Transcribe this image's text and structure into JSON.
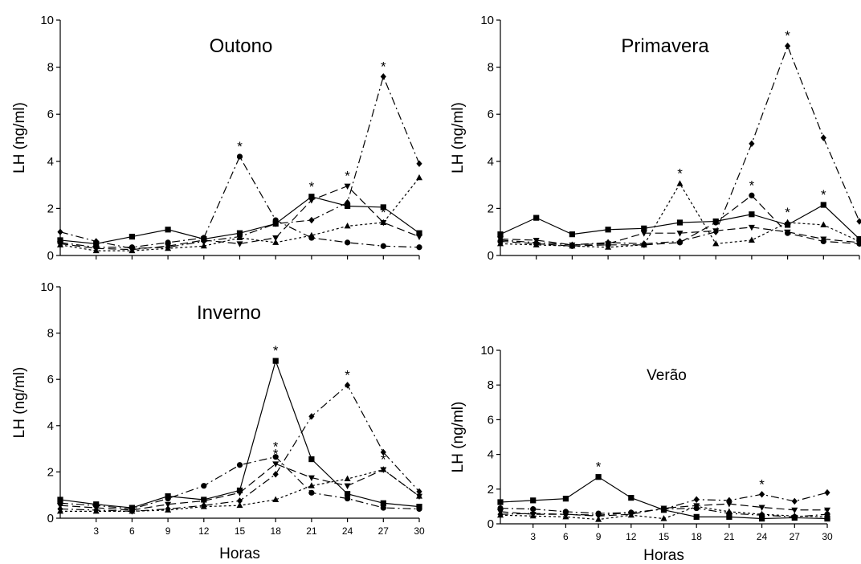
{
  "chart_data": [
    {
      "type": "line",
      "title": "Outono",
      "ylabel": "LH (ng/ml)",
      "xlabel": "",
      "ylim": [
        0,
        10
      ],
      "yticks": [
        "0",
        "2",
        "4",
        "6",
        "8",
        "10"
      ],
      "xticks": [],
      "x": [
        0,
        3,
        6,
        9,
        12,
        15,
        18,
        21,
        24,
        27,
        30
      ],
      "series": [
        {
          "marker": "square",
          "dash": "solid",
          "values": [
            0.65,
            0.5,
            0.8,
            1.1,
            0.7,
            0.95,
            1.35,
            2.5,
            2.1,
            2.05,
            0.95
          ]
        },
        {
          "marker": "circle",
          "dash": "dashdot",
          "values": [
            0.55,
            0.35,
            0.35,
            0.55,
            0.75,
            4.2,
            1.5,
            0.75,
            0.55,
            0.4,
            0.35
          ]
        },
        {
          "marker": "triangle",
          "dash": "dotted",
          "values": [
            0.45,
            0.2,
            0.2,
            0.3,
            0.4,
            0.75,
            0.55,
            0.85,
            1.25,
            1.4,
            3.3
          ]
        },
        {
          "marker": "down-triangle",
          "dash": "dashed",
          "values": [
            0.5,
            0.3,
            0.25,
            0.4,
            0.65,
            0.5,
            0.75,
            2.35,
            2.95,
            1.4,
            0.8
          ]
        },
        {
          "marker": "diamond",
          "dash": "dashdot",
          "values": [
            1.0,
            0.6,
            0.3,
            0.35,
            0.6,
            0.8,
            1.35,
            1.5,
            2.25,
            7.6,
            3.9
          ]
        }
      ],
      "annotations": [
        {
          "text": "*",
          "x": 15,
          "y": 4.2
        },
        {
          "text": "*",
          "x": 21,
          "y": 2.5
        },
        {
          "text": "*",
          "x": 24,
          "y": 2.95
        },
        {
          "text": "*",
          "x": 27,
          "y": 7.6
        },
        {
          "text": "*",
          "x": 27,
          "y": 1.4
        }
      ]
    },
    {
      "type": "line",
      "title": "Primavera",
      "ylabel": "LH (ng/ml)",
      "xlabel": "",
      "ylim": [
        0,
        10
      ],
      "yticks": [
        "0",
        "2",
        "4",
        "6",
        "8",
        "10"
      ],
      "xticks": [],
      "x": [
        0,
        3,
        6,
        9,
        12,
        15,
        18,
        21,
        24,
        27,
        30
      ],
      "series": [
        {
          "marker": "square",
          "dash": "solid",
          "values": [
            0.9,
            1.6,
            0.9,
            1.1,
            1.15,
            1.4,
            1.45,
            1.75,
            1.3,
            2.15,
            0.7
          ]
        },
        {
          "marker": "circle",
          "dash": "dashed",
          "values": [
            0.6,
            0.5,
            0.4,
            0.45,
            0.45,
            0.55,
            1.4,
            2.55,
            0.95,
            0.6,
            0.5
          ]
        },
        {
          "marker": "triangle",
          "dash": "dotted",
          "values": [
            0.5,
            0.45,
            0.4,
            0.35,
            0.45,
            3.05,
            0.5,
            0.65,
            1.4,
            1.3,
            0.6
          ]
        },
        {
          "marker": "down-triangle",
          "dash": "dashed",
          "values": [
            0.7,
            0.65,
            0.45,
            0.5,
            0.95,
            0.95,
            1.05,
            1.2,
            1.0,
            0.7,
            0.55
          ]
        },
        {
          "marker": "diamond",
          "dash": "dashdot",
          "values": [
            0.65,
            0.55,
            0.45,
            0.55,
            0.5,
            0.6,
            1.0,
            4.75,
            8.9,
            5.0,
            1.45
          ]
        }
      ],
      "annotations": [
        {
          "text": "*",
          "x": 15,
          "y": 3.05
        },
        {
          "text": "*",
          "x": 21,
          "y": 2.55
        },
        {
          "text": "*",
          "x": 24,
          "y": 8.9
        },
        {
          "text": "*",
          "x": 24,
          "y": 1.4
        },
        {
          "text": "*",
          "x": 27,
          "y": 2.15
        }
      ]
    },
    {
      "type": "line",
      "title": "Inverno",
      "ylabel": "LH (ng/ml)",
      "xlabel": "Horas",
      "ylim": [
        0,
        10
      ],
      "yticks": [
        "0",
        "2",
        "4",
        "6",
        "8",
        "10"
      ],
      "xticks": [
        "3",
        "6",
        "9",
        "12",
        "15",
        "18",
        "21",
        "24",
        "27",
        "30"
      ],
      "x": [
        0,
        3,
        6,
        9,
        12,
        15,
        18,
        21,
        24,
        27,
        30
      ],
      "series": [
        {
          "marker": "square",
          "dash": "solid",
          "values": [
            0.8,
            0.6,
            0.45,
            0.95,
            0.8,
            1.2,
            6.8,
            2.55,
            1.05,
            0.65,
            0.5
          ]
        },
        {
          "marker": "circle",
          "dash": "dashdot",
          "values": [
            0.65,
            0.55,
            0.4,
            0.85,
            1.4,
            2.3,
            2.65,
            1.1,
            0.85,
            0.45,
            0.4
          ]
        },
        {
          "marker": "triangle",
          "dash": "dotted",
          "values": [
            0.3,
            0.3,
            0.3,
            0.35,
            0.5,
            0.55,
            0.8,
            1.4,
            1.7,
            2.1,
            0.95
          ]
        },
        {
          "marker": "down-triangle",
          "dash": "dashed",
          "values": [
            0.55,
            0.45,
            0.35,
            0.6,
            0.75,
            1.1,
            2.35,
            1.75,
            1.4,
            2.1,
            0.95
          ]
        },
        {
          "marker": "diamond",
          "dash": "dashdot",
          "values": [
            0.4,
            0.35,
            0.3,
            0.4,
            0.55,
            0.75,
            1.9,
            4.4,
            5.75,
            2.85,
            1.15
          ]
        }
      ],
      "annotations": [
        {
          "text": "*",
          "x": 18,
          "y": 6.8
        },
        {
          "text": "*",
          "x": 18,
          "y": 2.65
        },
        {
          "text": "*",
          "x": 18,
          "y": 2.35
        },
        {
          "text": "*",
          "x": 24,
          "y": 5.75
        },
        {
          "text": "*",
          "x": 27,
          "y": 2.1
        }
      ]
    },
    {
      "type": "line",
      "title": "Verão",
      "ylabel": "LH (ng/ml)",
      "xlabel": "Horas",
      "ylim": [
        0,
        10
      ],
      "yticks": [
        "0",
        "2",
        "4",
        "6",
        "8",
        "10"
      ],
      "xticks": [
        "3",
        "6",
        "9",
        "12",
        "15",
        "18",
        "21",
        "24",
        "27",
        "30"
      ],
      "x": [
        0,
        3,
        6,
        9,
        12,
        15,
        18,
        21,
        24,
        27,
        30
      ],
      "series": [
        {
          "marker": "square",
          "dash": "solid",
          "values": [
            1.25,
            1.35,
            1.45,
            2.7,
            1.5,
            0.8,
            0.4,
            0.4,
            0.3,
            0.35,
            0.3
          ]
        },
        {
          "marker": "circle",
          "dash": "dashdot",
          "values": [
            0.9,
            0.85,
            0.7,
            0.6,
            0.65,
            0.85,
            0.9,
            0.6,
            0.5,
            0.4,
            0.55
          ]
        },
        {
          "marker": "triangle",
          "dash": "dotted",
          "values": [
            0.5,
            0.45,
            0.4,
            0.25,
            0.5,
            0.3,
            1.0,
            0.7,
            0.55,
            0.45,
            0.4
          ]
        },
        {
          "marker": "down-triangle",
          "dash": "dashed",
          "values": [
            0.7,
            0.55,
            0.55,
            0.45,
            0.55,
            0.9,
            1.05,
            1.15,
            0.95,
            0.8,
            0.8
          ]
        },
        {
          "marker": "diamond",
          "dash": "dashdot",
          "values": [
            0.55,
            0.6,
            0.55,
            0.5,
            0.65,
            0.85,
            1.4,
            1.35,
            1.7,
            1.3,
            1.8
          ]
        }
      ],
      "annotations": [
        {
          "text": "*",
          "x": 9,
          "y": 2.7
        },
        {
          "text": "*",
          "x": 24,
          "y": 1.7
        }
      ]
    }
  ]
}
